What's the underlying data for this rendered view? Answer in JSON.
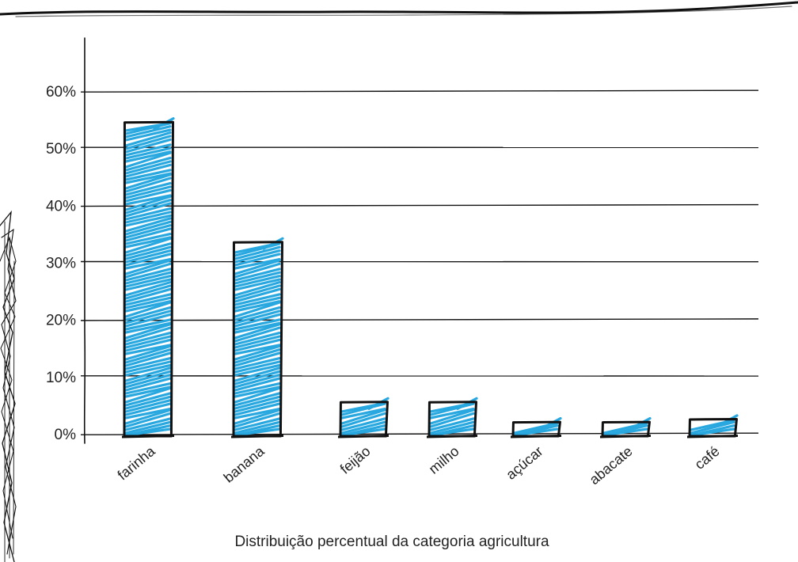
{
  "chart_data": {
    "type": "bar",
    "categories": [
      "farinha",
      "banana",
      "feijão",
      "milho",
      "açúcar",
      "abacate",
      "café"
    ],
    "values": [
      54.5,
      33.5,
      5.5,
      5.5,
      2.0,
      2.0,
      2.5
    ],
    "xlabel": "Distribuição percentual da categoria agricultura",
    "ylabel": "",
    "ylim": [
      0,
      60
    ],
    "yticks": [
      0,
      10,
      20,
      30,
      40,
      50,
      60
    ],
    "ytick_labels": [
      "0%",
      "10%",
      "20%",
      "30%",
      "40%",
      "50%",
      "60%"
    ],
    "grid": true,
    "legend": "none",
    "style": "hand-drawn sketch",
    "bar_color": "#29a8e0",
    "outline_color": "#111111"
  }
}
